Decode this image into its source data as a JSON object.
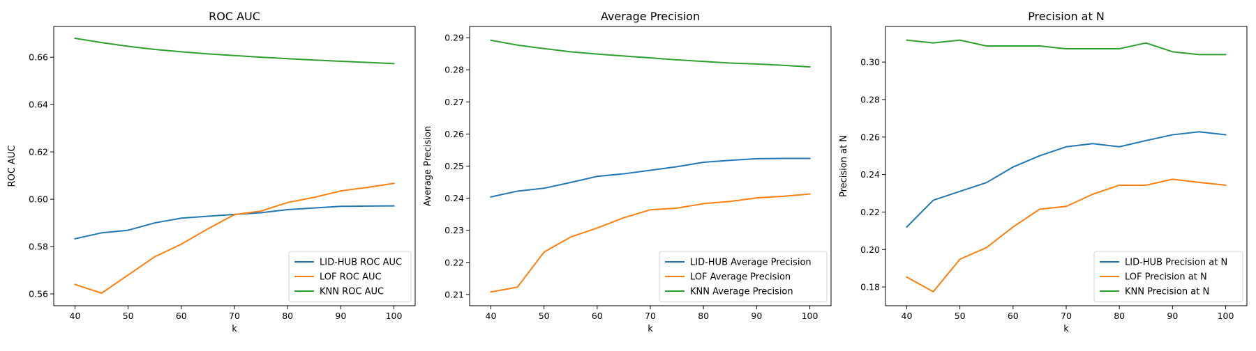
{
  "chart_data": [
    {
      "type": "line",
      "title": "ROC AUC",
      "xlabel": "k",
      "ylabel": "ROC AUC",
      "x": [
        40,
        45,
        50,
        55,
        60,
        65,
        70,
        75,
        80,
        85,
        90,
        95,
        100
      ],
      "xlim": [
        36,
        104
      ],
      "ylim": [
        0.555,
        0.673
      ],
      "xticks": [
        40,
        50,
        60,
        70,
        80,
        90,
        100
      ],
      "yticks": [
        0.56,
        0.58,
        0.6,
        0.62,
        0.64,
        0.66
      ],
      "ytick_labels": [
        "0.56",
        "0.58",
        "0.60",
        "0.62",
        "0.64",
        "0.66"
      ],
      "legend_position": "lower-right",
      "series": [
        {
          "name": "LID-HUB ROC AUC",
          "color": "#1f77b4",
          "values": [
            0.5833,
            0.5858,
            0.5869,
            0.59,
            0.592,
            0.5928,
            0.5936,
            0.5943,
            0.5956,
            0.5963,
            0.597,
            0.5971,
            0.5972
          ]
        },
        {
          "name": "LOF ROC AUC",
          "color": "#ff7f0e",
          "values": [
            0.564,
            0.5603,
            0.568,
            0.5757,
            0.581,
            0.5875,
            0.5935,
            0.595,
            0.5986,
            0.6008,
            0.6035,
            0.605,
            0.6067
          ]
        },
        {
          "name": "KNN ROC AUC",
          "color": "#2ca02c",
          "values": [
            0.668,
            0.6662,
            0.6646,
            0.6633,
            0.6623,
            0.6614,
            0.6607,
            0.66,
            0.6594,
            0.6588,
            0.6583,
            0.6578,
            0.6573
          ]
        }
      ]
    },
    {
      "type": "line",
      "title": "Average Precision",
      "xlabel": "k",
      "ylabel": "Average Precision",
      "x": [
        40,
        45,
        50,
        55,
        60,
        65,
        70,
        75,
        80,
        85,
        90,
        95,
        100
      ],
      "xlim": [
        36,
        104
      ],
      "ylim": [
        0.2065,
        0.2935
      ],
      "xticks": [
        40,
        50,
        60,
        70,
        80,
        90,
        100
      ],
      "yticks": [
        0.21,
        0.22,
        0.23,
        0.24,
        0.25,
        0.26,
        0.27,
        0.28,
        0.29
      ],
      "ytick_labels": [
        "0.21",
        "0.22",
        "0.23",
        "0.24",
        "0.25",
        "0.26",
        "0.27",
        "0.28",
        "0.29"
      ],
      "legend_position": "lower-right",
      "series": [
        {
          "name": "LID-HUB Average Precision",
          "color": "#1f77b4",
          "values": [
            0.2404,
            0.2422,
            0.2431,
            0.2449,
            0.2468,
            0.2476,
            0.2487,
            0.2498,
            0.2512,
            0.2518,
            0.2523,
            0.2524,
            0.2524
          ]
        },
        {
          "name": "LOF Average Precision",
          "color": "#ff7f0e",
          "values": [
            0.2108,
            0.2123,
            0.2232,
            0.2279,
            0.2307,
            0.2339,
            0.2364,
            0.2369,
            0.2383,
            0.239,
            0.2401,
            0.2406,
            0.2413
          ]
        },
        {
          "name": "KNN Average Precision",
          "color": "#2ca02c",
          "values": [
            0.2892,
            0.2877,
            0.2866,
            0.2856,
            0.2849,
            0.2843,
            0.2837,
            0.2831,
            0.2826,
            0.2821,
            0.2818,
            0.2814,
            0.2809
          ]
        }
      ]
    },
    {
      "type": "line",
      "title": "Precision at N",
      "xlabel": "k",
      "ylabel": "Precision at N",
      "x": [
        40,
        45,
        50,
        55,
        60,
        65,
        70,
        75,
        80,
        85,
        90,
        95,
        100
      ],
      "xlim": [
        36,
        104
      ],
      "ylim": [
        0.17,
        0.319
      ],
      "xticks": [
        40,
        50,
        60,
        70,
        80,
        90,
        100
      ],
      "yticks": [
        0.18,
        0.2,
        0.22,
        0.24,
        0.26,
        0.28,
        0.3
      ],
      "ytick_labels": [
        "0.18",
        "0.20",
        "0.22",
        "0.24",
        "0.26",
        "0.28",
        "0.30"
      ],
      "legend_position": "lower-right",
      "series": [
        {
          "name": "LID-HUB Precision at N",
          "color": "#1f77b4",
          "values": [
            0.212,
            0.2263,
            0.231,
            0.2357,
            0.244,
            0.25,
            0.2548,
            0.2565,
            0.2548,
            0.2581,
            0.2612,
            0.2628,
            0.2612
          ]
        },
        {
          "name": "LOF Precision at N",
          "color": "#ff7f0e",
          "values": [
            0.1853,
            0.1775,
            0.1948,
            0.201,
            0.212,
            0.2215,
            0.223,
            0.2295,
            0.2343,
            0.2343,
            0.2375,
            0.2358,
            0.2343
          ]
        },
        {
          "name": "KNN Precision at N",
          "color": "#2ca02c",
          "values": [
            0.3117,
            0.3102,
            0.3117,
            0.3086,
            0.3086,
            0.3086,
            0.3071,
            0.3071,
            0.3071,
            0.3102,
            0.3055,
            0.304,
            0.304
          ]
        }
      ]
    }
  ]
}
